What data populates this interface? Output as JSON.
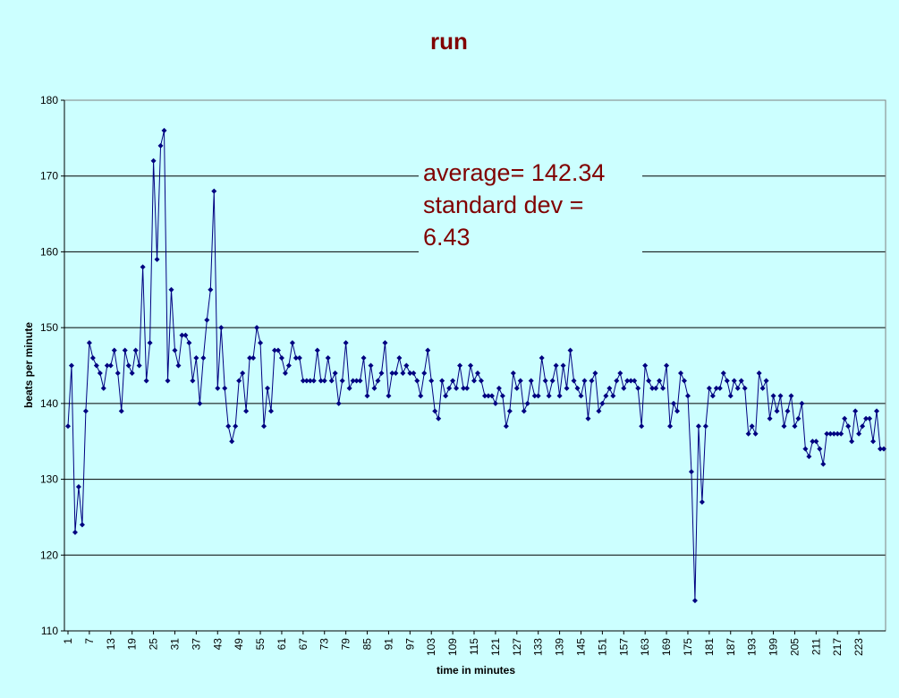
{
  "chart_data": {
    "type": "line",
    "title": "run",
    "xlabel": "time in minutes",
    "ylabel": "beats per minute",
    "ylim": [
      110,
      180
    ],
    "y_ticks": [
      110,
      120,
      130,
      140,
      150,
      160,
      170,
      180
    ],
    "x_tick_labels": [
      "1",
      "7",
      "13",
      "19",
      "25",
      "31",
      "37",
      "43",
      "49",
      "55",
      "61",
      "67",
      "73",
      "79",
      "85",
      "91",
      "97",
      "103",
      "109",
      "115",
      "121",
      "127",
      "133",
      "139",
      "145",
      "151",
      "157",
      "163",
      "169",
      "175",
      "181",
      "187",
      "193",
      "199",
      "205",
      "211",
      "217",
      "223"
    ],
    "x_tick_step": 6,
    "grid": true,
    "legend": "none",
    "annotation": [
      "average= 142.34",
      "standard dev =",
      "6.43"
    ],
    "colors": {
      "series": "#000080",
      "grid": "#000000",
      "title": "#800000",
      "background": "#ccffff"
    },
    "series": [
      {
        "values": [
          137,
          145,
          123,
          129,
          124,
          139,
          148,
          146,
          145,
          144,
          142,
          145,
          145,
          147,
          144,
          139,
          147,
          145,
          144,
          147,
          145,
          158,
          143,
          148,
          172,
          159,
          174,
          176,
          143,
          155,
          147,
          145,
          149,
          149,
          148,
          143,
          146,
          140,
          146,
          151,
          155,
          168,
          142,
          150,
          142,
          137,
          135,
          137,
          143,
          144,
          139,
          146,
          146,
          150,
          148,
          137,
          142,
          139,
          147,
          147,
          146,
          144,
          145,
          148,
          146,
          146,
          143,
          143,
          143,
          143,
          147,
          143,
          143,
          146,
          143,
          144,
          140,
          143,
          148,
          142,
          143,
          143,
          143,
          146,
          141,
          145,
          142,
          143,
          144,
          148,
          141,
          144,
          144,
          146,
          144,
          145,
          144,
          144,
          143,
          141,
          144,
          147,
          143,
          139,
          138,
          143,
          141,
          142,
          143,
          142,
          145,
          142,
          142,
          145,
          143,
          144,
          143,
          141,
          141,
          141,
          140,
          142,
          141,
          137,
          139,
          144,
          142,
          143,
          139,
          140,
          143,
          141,
          141,
          146,
          143,
          141,
          143,
          145,
          141,
          145,
          142,
          147,
          143,
          142,
          141,
          143,
          138,
          143,
          144,
          139,
          140,
          141,
          142,
          141,
          143,
          144,
          142,
          143,
          143,
          143,
          142,
          137,
          145,
          143,
          142,
          142,
          143,
          142,
          145,
          137,
          140,
          139,
          144,
          143,
          141,
          131,
          114,
          137,
          127,
          137,
          142,
          141,
          142,
          142,
          144,
          143,
          141,
          143,
          142,
          143,
          142,
          136,
          137,
          136,
          144,
          142,
          143,
          138,
          141,
          139,
          141,
          137,
          139,
          141,
          137,
          138,
          140,
          134,
          133,
          135,
          135,
          134,
          132,
          136,
          136,
          136,
          136,
          136,
          138,
          137,
          135,
          139,
          136,
          137,
          138,
          138,
          135,
          139,
          134,
          134
        ]
      }
    ]
  }
}
